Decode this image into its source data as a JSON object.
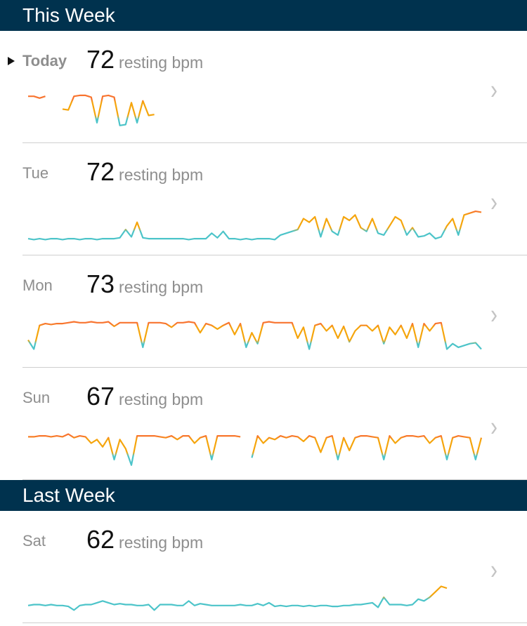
{
  "colors": {
    "header": "#00324e",
    "high": "#f8742f",
    "mid": "#f5a50c",
    "low": "#4cc4c9"
  },
  "sections": [
    {
      "title": "This Week",
      "days": [
        {
          "label": "Today",
          "current": true,
          "value": "72",
          "unit": "resting bpm",
          "heart_rate": [
            91,
            91,
            89,
            91,
            null,
            null,
            77,
            76,
            91,
            92,
            92,
            90,
            62,
            91,
            92,
            90,
            59,
            60,
            84,
            62,
            86,
            70,
            71
          ]
        },
        {
          "label": "Tue",
          "value": "72",
          "unit": "resting bpm",
          "heart_rate": [
            58,
            57,
            58,
            57,
            58,
            58,
            57,
            58,
            58,
            57,
            58,
            58,
            57,
            58,
            58,
            58,
            59,
            68,
            60,
            76,
            59,
            58,
            58,
            58,
            58,
            58,
            58,
            58,
            57,
            58,
            58,
            58,
            64,
            59,
            66,
            58,
            58,
            57,
            58,
            57,
            58,
            58,
            58,
            57,
            62,
            64,
            66,
            68,
            80,
            76,
            82,
            60,
            80,
            66,
            62,
            82,
            78,
            84,
            70,
            66,
            80,
            64,
            62,
            72,
            82,
            78,
            62,
            70,
            60,
            61,
            64,
            58,
            60,
            72,
            80,
            62,
            84,
            86,
            88,
            87
          ]
        },
        {
          "label": "Mon",
          "value": "73",
          "unit": "resting bpm",
          "heart_rate": [
            70,
            60,
            86,
            88,
            87,
            88,
            88,
            89,
            90,
            89,
            89,
            90,
            89,
            89,
            90,
            85,
            89,
            89,
            89,
            89,
            62,
            89,
            89,
            89,
            88,
            84,
            89,
            89,
            90,
            89,
            78,
            88,
            86,
            82,
            86,
            89,
            76,
            88,
            62,
            78,
            66,
            89,
            90,
            89,
            89,
            89,
            89,
            72,
            84,
            60,
            86,
            88,
            80,
            86,
            72,
            85,
            68,
            80,
            86,
            86,
            80,
            86,
            66,
            84,
            76,
            86,
            72,
            88,
            62,
            88,
            80,
            88,
            89,
            60,
            66,
            62,
            64,
            66,
            67,
            60
          ]
        },
        {
          "label": "Sun",
          "value": "67",
          "unit": "resting bpm",
          "heart_rate": [
            87,
            87,
            88,
            88,
            87,
            88,
            87,
            90,
            86,
            88,
            87,
            80,
            84,
            76,
            86,
            62,
            84,
            74,
            56,
            88,
            88,
            88,
            88,
            87,
            86,
            88,
            84,
            88,
            88,
            80,
            86,
            88,
            62,
            88,
            88,
            88,
            88,
            87,
            null,
            64,
            88,
            80,
            86,
            84,
            88,
            86,
            88,
            87,
            82,
            88,
            86,
            70,
            86,
            88,
            62,
            86,
            72,
            86,
            88,
            88,
            87,
            86,
            62,
            88,
            80,
            86,
            88,
            88,
            87,
            88,
            80,
            86,
            88,
            62,
            86,
            88,
            87,
            86,
            62,
            86
          ]
        }
      ]
    },
    {
      "title": "Last Week",
      "days": [
        {
          "label": "Sat",
          "value": "62",
          "unit": "resting bpm",
          "heart_rate": [
            59,
            60,
            60,
            59,
            60,
            59,
            59,
            58,
            54,
            59,
            60,
            60,
            62,
            64,
            62,
            60,
            61,
            60,
            60,
            59,
            59,
            60,
            54,
            60,
            60,
            60,
            59,
            59,
            64,
            59,
            61,
            60,
            59,
            59,
            59,
            59,
            59,
            60,
            59,
            59,
            61,
            59,
            62,
            58,
            59,
            58,
            59,
            59,
            58,
            59,
            58,
            59,
            59,
            58,
            58,
            59,
            59,
            60,
            60,
            61,
            62,
            57,
            68,
            60,
            60,
            60,
            59,
            60,
            66,
            64,
            68,
            74,
            80,
            78
          ]
        }
      ]
    }
  ]
}
